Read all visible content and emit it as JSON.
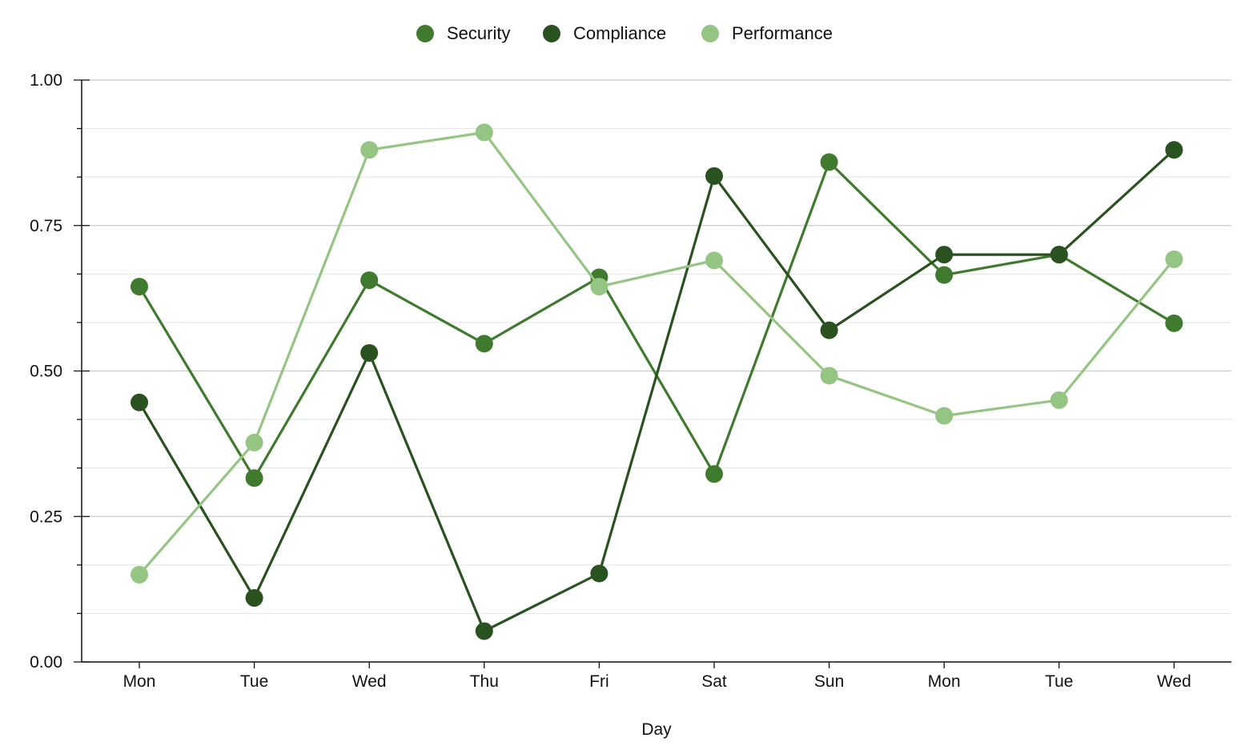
{
  "chart_data": {
    "type": "line",
    "title": "",
    "xlabel": "Day",
    "ylabel": "",
    "categories": [
      "Mon",
      "Tue",
      "Wed",
      "Thu",
      "Fri",
      "Sat",
      "Sun",
      "Mon",
      "Tue",
      "Wed"
    ],
    "ylim": [
      0,
      1
    ],
    "y_ticks": [
      "0.00",
      "0.25",
      "0.50",
      "0.75",
      "1.00"
    ],
    "grid": true,
    "legend_position": "top-center",
    "series": [
      {
        "name": "Security",
        "color": "#3f7a2e",
        "values": [
          0.645,
          0.316,
          0.656,
          0.547,
          0.661,
          0.323,
          0.859,
          0.665,
          0.7,
          0.582
        ]
      },
      {
        "name": "Compliance",
        "color": "#2a5220",
        "values": [
          0.446,
          0.11,
          0.531,
          0.053,
          0.152,
          0.835,
          0.57,
          0.7,
          0.7,
          0.88
        ]
      },
      {
        "name": "Performance",
        "color": "#95c583",
        "values": [
          0.15,
          0.377,
          0.88,
          0.91,
          0.645,
          0.69,
          0.492,
          0.423,
          0.45,
          0.692
        ]
      }
    ]
  }
}
